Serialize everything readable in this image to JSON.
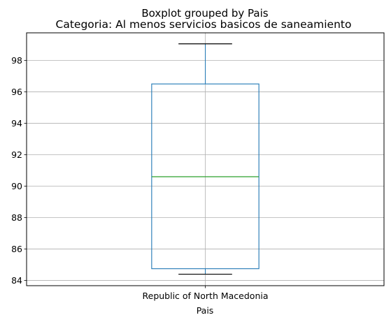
{
  "chart_data": {
    "type": "boxplot",
    "suptitle": "Boxplot grouped by Pais",
    "title": "Categoria: Al menos servicios basicos de saneamiento",
    "xlabel": "Pais",
    "ylabel": "",
    "categories": [
      "Republic of North Macedonia"
    ],
    "boxes": [
      {
        "category": "Republic of North Macedonia",
        "whisker_low": 84.4,
        "q1": 84.75,
        "median": 90.6,
        "q3": 96.5,
        "whisker_high": 99.05
      }
    ],
    "yticks": [
      84,
      86,
      88,
      90,
      92,
      94,
      96,
      98
    ],
    "ylim": [
      83.67,
      99.75
    ],
    "grid": true,
    "colors": {
      "box": "#1f77b4",
      "median": "#2ca02c",
      "whisker_cap": "#000000",
      "grid": "#b0b0b0"
    }
  }
}
